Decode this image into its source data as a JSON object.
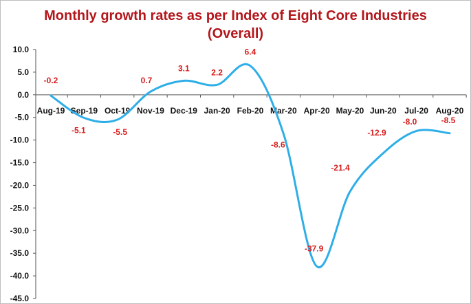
{
  "chart_data": {
    "type": "line",
    "title_line1": "Monthly growth rates as per Index of Eight Core Industries",
    "title_line2": "(Overall)",
    "categories": [
      "Aug-19",
      "Sep-19",
      "Oct-19",
      "Nov-19",
      "Dec-19",
      "Jan-20",
      "Feb-20",
      "Mar-20",
      "Apr-20",
      "May-20",
      "Jun-20",
      "Jul-20",
      "Aug-20"
    ],
    "values": [
      -0.2,
      -5.1,
      -5.5,
      0.7,
      3.1,
      2.2,
      6.4,
      -8.6,
      -37.9,
      -21.4,
      -12.9,
      -8.0,
      -8.5
    ],
    "data_labels": [
      "-0.2",
      "-5.1",
      "-5.5",
      "0.7",
      "3.1",
      "2.2",
      "6.4",
      "-8.6",
      "-37.9",
      "-21.4",
      "-12.9",
      "-8.0",
      "-8.5"
    ],
    "y_ticks": [
      "10.0",
      "5.0",
      "0.0",
      "-5.0",
      "-10.0",
      "-15.0",
      "-20.0",
      "-25.0",
      "-30.0",
      "-35.0",
      "-40.0",
      "-45.0"
    ],
    "ylim": [
      -45,
      10
    ],
    "grid": false,
    "legend": "none",
    "line_color": "#2eaee8",
    "label_color": "#d81d1d",
    "title_color": "#b3161b"
  }
}
